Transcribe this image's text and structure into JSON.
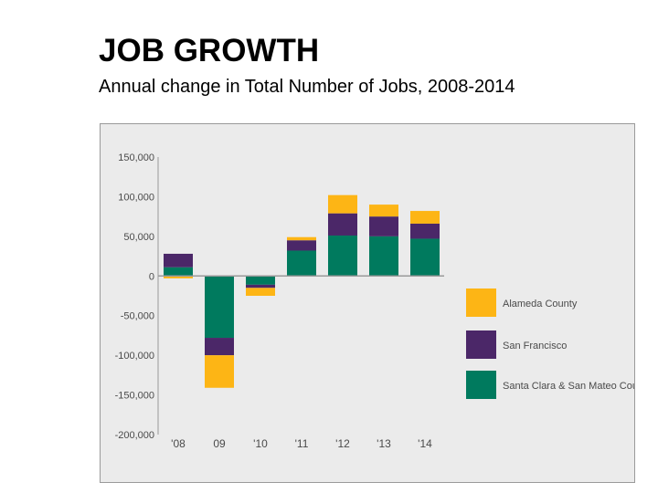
{
  "title": "JOB GROWTH",
  "subtitle": "Annual change in Total Number of Jobs, 2008-2014",
  "colors": {
    "Alameda County": "#fdb515",
    "San Francisco": "#4b2768",
    "Santa Clara & San Mateo Counties": "#007a5e"
  },
  "chart_data": {
    "type": "bar",
    "stacked": true,
    "categories": [
      "'08",
      "09",
      "'10",
      "'11",
      "'12",
      "'13",
      "'14"
    ],
    "series": [
      {
        "name": "Santa Clara & San Mateo Counties",
        "values": [
          11000,
          -78000,
          -11000,
          32000,
          51000,
          50000,
          47000
        ]
      },
      {
        "name": "San Francisco",
        "values": [
          17000,
          -22000,
          -4000,
          13000,
          28000,
          25000,
          19000
        ]
      },
      {
        "name": "Alameda County",
        "values": [
          -3000,
          -41000,
          -10000,
          4000,
          23000,
          15000,
          16000
        ]
      }
    ],
    "ylim": [
      -200000,
      150000
    ],
    "yticks": [
      150000,
      100000,
      50000,
      0,
      -50000,
      -100000,
      -150000,
      -200000
    ],
    "ytick_labels": [
      "150,000",
      "100,000",
      "50,000",
      "0",
      "-50,000",
      "-100,000",
      "-150,000",
      "-200,000"
    ],
    "legend": [
      "Alameda County",
      "San Francisco",
      "Santa Clara & San Mateo Counties"
    ],
    "legend_position": "right",
    "grid": false
  }
}
